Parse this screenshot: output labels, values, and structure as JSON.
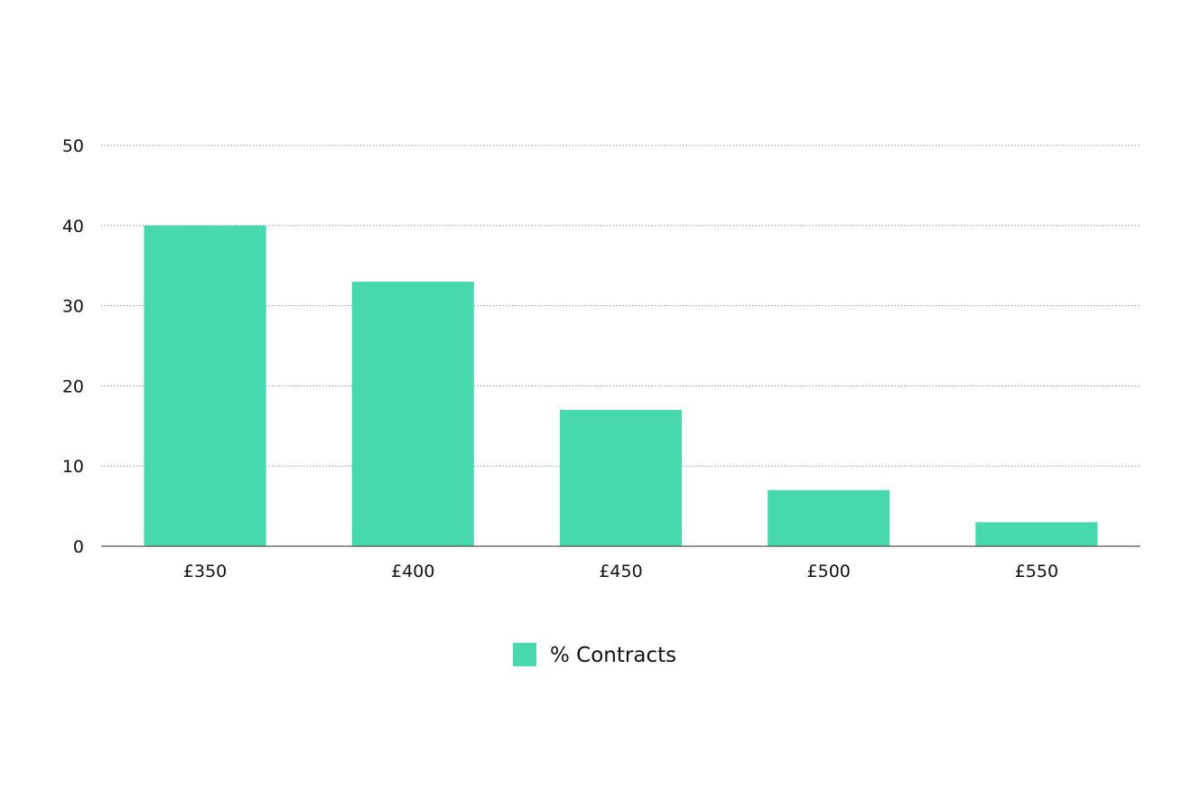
{
  "chart_data": {
    "type": "bar",
    "categories": [
      "£350",
      "£400",
      "£450",
      "£500",
      "£550"
    ],
    "series": [
      {
        "name": "% Contracts",
        "values": [
          40,
          33,
          17,
          7,
          3
        ],
        "color": "#48D8AE"
      }
    ],
    "ylim": [
      0,
      50
    ],
    "yticks": [
      0,
      10,
      20,
      30,
      40,
      50
    ],
    "grid": true,
    "gridline_color": "#9a9a9a",
    "axis_color": "#555555",
    "legend_position": "bottom-center"
  }
}
